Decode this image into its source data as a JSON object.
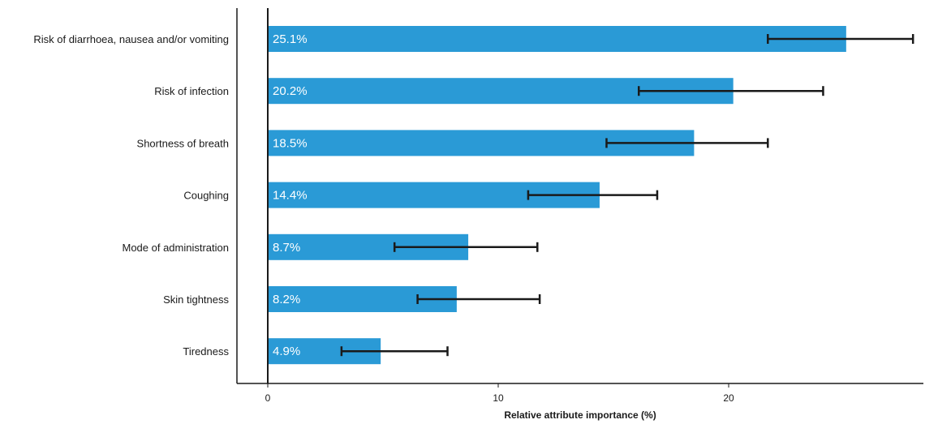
{
  "chart_data": {
    "type": "bar",
    "orientation": "horizontal",
    "categories": [
      "Risk of diarrhoea, nausea and/or vomiting",
      "Risk of infection",
      "Shortness of breath",
      "Coughing",
      "Mode of administration",
      "Skin tightness",
      "Tiredness"
    ],
    "values": [
      25.1,
      20.2,
      18.5,
      14.4,
      8.7,
      8.2,
      4.9
    ],
    "value_labels": [
      "25.1%",
      "20.2%",
      "18.5%",
      "14.4%",
      "8.7%",
      "8.2%",
      "4.9%"
    ],
    "error_low": [
      21.7,
      16.1,
      14.7,
      11.3,
      5.5,
      6.5,
      3.2
    ],
    "error_high": [
      28.0,
      24.1,
      21.7,
      16.9,
      11.7,
      11.8,
      7.8
    ],
    "xlabel": "Relative attribute importance (%)",
    "ylabel": "",
    "xlim": [
      -1.3,
      29
    ],
    "xticks": [
      0,
      10,
      20
    ],
    "grid": false,
    "bar_color": "#2a9ad6",
    "error_color": "#1a1a1a"
  }
}
